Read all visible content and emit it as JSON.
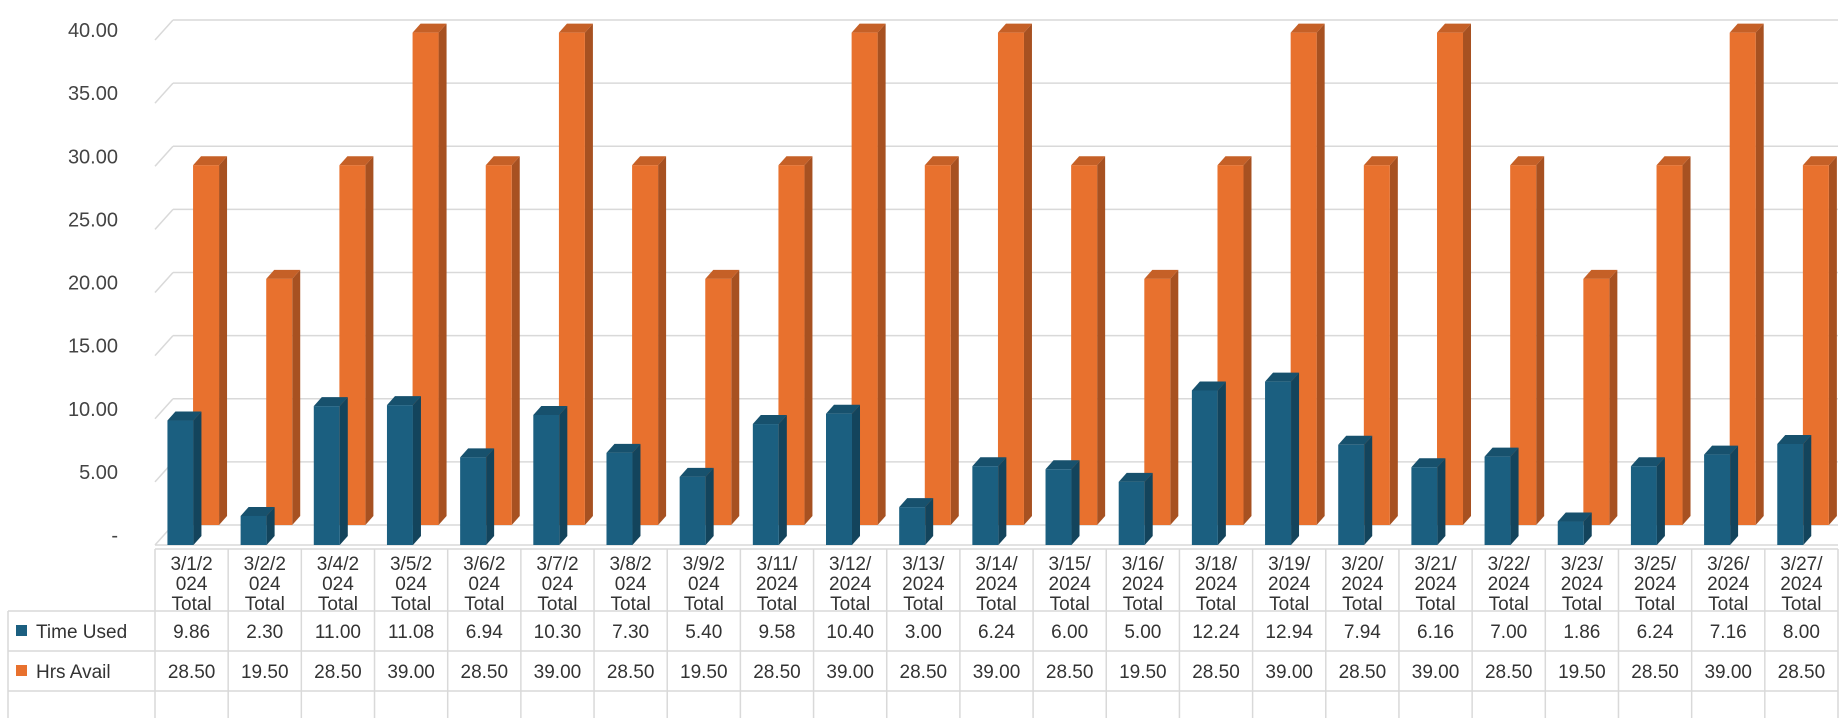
{
  "chart_data": {
    "type": "bar",
    "style": "3d-clustered-column-with-data-table",
    "categories": [
      "3/1/2024 Total",
      "3/2/2024 Total",
      "3/4/2024 Total",
      "3/5/2024 Total",
      "3/6/2024 Total",
      "3/7/2024 Total",
      "3/8/2024 Total",
      "3/9/2024 Total",
      "3/11/2024 Total",
      "3/12/2024 Total",
      "3/13/2024 Total",
      "3/14/2024 Total",
      "3/15/2024 Total",
      "3/16/2024 Total",
      "3/18/2024 Total",
      "3/19/2024 Total",
      "3/20/2024 Total",
      "3/21/2024 Total",
      "3/22/2024 Total",
      "3/23/2024 Total",
      "3/25/2024 Total",
      "3/26/2024 Total",
      "3/27/2024 Total"
    ],
    "category_label_lines": [
      [
        "3/1/2",
        "024",
        "Total"
      ],
      [
        "3/2/2",
        "024",
        "Total"
      ],
      [
        "3/4/2",
        "024",
        "Total"
      ],
      [
        "3/5/2",
        "024",
        "Total"
      ],
      [
        "3/6/2",
        "024",
        "Total"
      ],
      [
        "3/7/2",
        "024",
        "Total"
      ],
      [
        "3/8/2",
        "024",
        "Total"
      ],
      [
        "3/9/2",
        "024",
        "Total"
      ],
      [
        "3/11/",
        "2024",
        "Total"
      ],
      [
        "3/12/",
        "2024",
        "Total"
      ],
      [
        "3/13/",
        "2024",
        "Total"
      ],
      [
        "3/14/",
        "2024",
        "Total"
      ],
      [
        "3/15/",
        "2024",
        "Total"
      ],
      [
        "3/16/",
        "2024",
        "Total"
      ],
      [
        "3/18/",
        "2024",
        "Total"
      ],
      [
        "3/19/",
        "2024",
        "Total"
      ],
      [
        "3/20/",
        "2024",
        "Total"
      ],
      [
        "3/21/",
        "2024",
        "Total"
      ],
      [
        "3/22/",
        "2024",
        "Total"
      ],
      [
        "3/23/",
        "2024",
        "Total"
      ],
      [
        "3/25/",
        "2024",
        "Total"
      ],
      [
        "3/26/",
        "2024",
        "Total"
      ],
      [
        "3/27/",
        "2024",
        "Total"
      ]
    ],
    "series": [
      {
        "name": "Time Used",
        "color": "#1b5f80",
        "values": [
          9.86,
          2.3,
          11.0,
          11.08,
          6.94,
          10.3,
          7.3,
          5.4,
          9.58,
          10.4,
          3.0,
          6.24,
          6.0,
          5.0,
          12.24,
          12.94,
          7.94,
          6.16,
          7.0,
          1.86,
          6.24,
          7.16,
          8.0
        ],
        "labels": [
          "9.86",
          "2.30",
          "11.00",
          "11.08",
          "6.94",
          "10.30",
          "7.30",
          "5.40",
          "9.58",
          "10.40",
          "3.00",
          "6.24",
          "6.00",
          "5.00",
          "12.24",
          "12.94",
          "7.94",
          "6.16",
          "7.00",
          "1.86",
          "6.24",
          "7.16",
          "8.00"
        ]
      },
      {
        "name": "Hrs Avail",
        "color": "#e8712e",
        "values": [
          28.5,
          19.5,
          28.5,
          39.0,
          28.5,
          39.0,
          28.5,
          19.5,
          28.5,
          39.0,
          28.5,
          39.0,
          28.5,
          19.5,
          28.5,
          39.0,
          28.5,
          39.0,
          28.5,
          19.5,
          28.5,
          39.0,
          28.5
        ],
        "labels": [
          "28.50",
          "19.50",
          "28.50",
          "39.00",
          "28.50",
          "39.00",
          "28.50",
          "19.50",
          "28.50",
          "39.00",
          "28.50",
          "39.00",
          "28.50",
          "19.50",
          "28.50",
          "39.00",
          "28.50",
          "39.00",
          "28.50",
          "19.50",
          "28.50",
          "39.00",
          "28.50"
        ]
      }
    ],
    "y_ticks": [
      "-",
      "5.00",
      "10.00",
      "15.00",
      "20.00",
      "25.00",
      "30.00",
      "35.00",
      "40.00"
    ],
    "ylim": [
      0,
      40
    ],
    "grid": true,
    "legend": "data-table"
  }
}
